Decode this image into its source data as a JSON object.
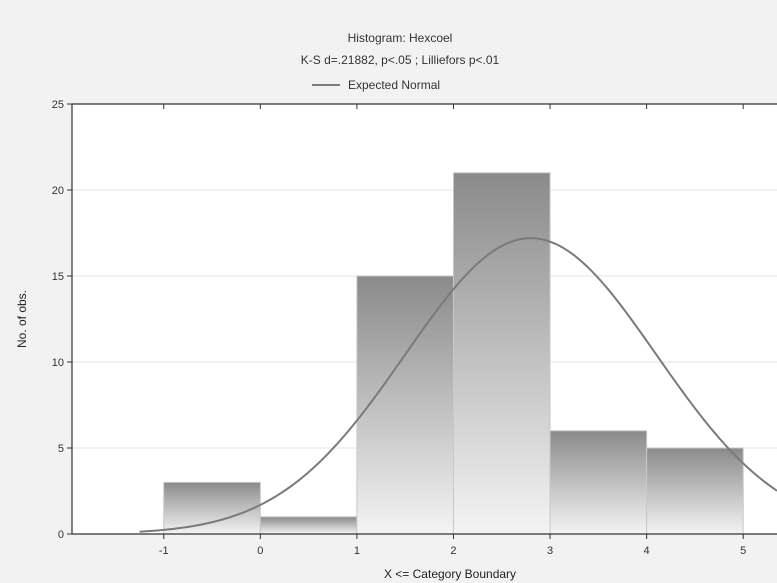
{
  "chart_data": {
    "type": "bar",
    "title": "Histogram: Hexcoel",
    "subtitle": "K-S d=.21882, p<.05 ; Lilliefors p<.01",
    "legend": [
      {
        "label": "Expected Normal",
        "placement": "top-center"
      }
    ],
    "xlabel": "X <= Category Boundary",
    "ylabel": "No. of obs.",
    "xlim": [
      -1.95,
      5.35
    ],
    "ylim": [
      0,
      25
    ],
    "x_ticks": [
      -1,
      0,
      1,
      2,
      3,
      4,
      5
    ],
    "y_ticks": [
      0,
      5,
      10,
      15,
      20,
      25
    ],
    "grid": true,
    "bins": [
      {
        "from": -1,
        "to": 0,
        "value": 3
      },
      {
        "from": 0,
        "to": 1,
        "value": 1
      },
      {
        "from": 1,
        "to": 2,
        "value": 15
      },
      {
        "from": 2,
        "to": 3,
        "value": 21
      },
      {
        "from": 3,
        "to": 4,
        "value": 6
      },
      {
        "from": 4,
        "to": 5,
        "value": 5
      }
    ],
    "expected_normal": {
      "peak_x": 2.8,
      "peak_y": 17.2,
      "sd": 1.3
    }
  },
  "colors": {
    "background": "#f2f2f2",
    "plot_background": "#ffffff",
    "bar_top": "#8a8a8a",
    "bar_bottom": "#f4f4f4",
    "bar_stroke": "#c8c8c8",
    "curve": "#7a7a7a",
    "axis": "#333333",
    "grid": "#e6e6e6"
  }
}
